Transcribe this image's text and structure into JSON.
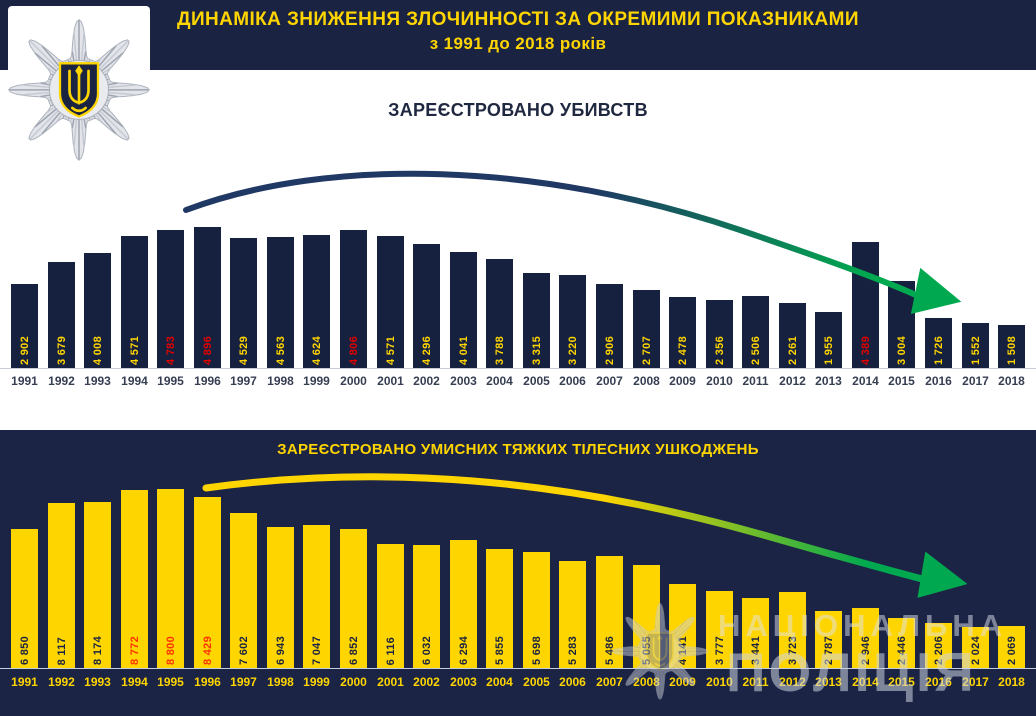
{
  "header": {
    "title_line1": "ДИНАМІКА ЗНИЖЕННЯ ЗЛОЧИННОСТІ ЗА ОКРЕМИМИ ПОКАЗНИКАМИ",
    "title_line2": "з 1991 до 2018 років"
  },
  "logo": {
    "icon": "national-police-star-badge"
  },
  "watermark": {
    "line1": "НАЦІОНАЛЬНА",
    "line2": "ПОЛІЦІЯ",
    "icon": "police-star-badge-faint"
  },
  "colors": {
    "navy_background": "#1B2444",
    "header_navy": "#1A2342",
    "bar_navy": "#16213F",
    "yellow": "#FFD500",
    "red_highlight_top": "#E00000",
    "red_highlight_bottom": "#FF3300",
    "arrow_green": "#00A94F",
    "arrow_navy": "#1F3864",
    "year_label_dark": "#363E52"
  },
  "chart_data": [
    {
      "type": "bar",
      "title": "ЗАРЕЄСТРОВАНО УБИВСТВ",
      "categories": [
        "1991",
        "1992",
        "1993",
        "1994",
        "1995",
        "1996",
        "1997",
        "1998",
        "1999",
        "2000",
        "2001",
        "2002",
        "2003",
        "2004",
        "2005",
        "2006",
        "2007",
        "2008",
        "2009",
        "2010",
        "2011",
        "2012",
        "2013",
        "2014",
        "2015",
        "2016",
        "2017",
        "2018"
      ],
      "values": [
        2902,
        3679,
        4008,
        4571,
        4783,
        4896,
        4529,
        4563,
        4624,
        4806,
        4571,
        4296,
        4041,
        3788,
        3315,
        3220,
        2906,
        2707,
        2478,
        2356,
        2506,
        2261,
        1955,
        4389,
        3004,
        1726,
        1552,
        1508
      ],
      "red_years": [
        "1995",
        "1996",
        "2000",
        "2014"
      ],
      "bar_color": "#16213F",
      "value_label_color": "#FFD500",
      "red_label_color": "#E00000",
      "year_label_color": "#363E52",
      "background": "#FFFFFF",
      "xlabel": "",
      "ylabel": "",
      "ylim": [
        0,
        5000
      ],
      "grid": false,
      "legend": "none",
      "annotation": "curved declining trend arrow, navy fading to green, tip pointing down-right"
    },
    {
      "type": "bar",
      "title": "ЗАРЕЄСТРОВАНО  УМИСНИХ ТЯЖКИХ ТІЛЕСНИХ УШКОДЖЕНЬ",
      "categories": [
        "1991",
        "1992",
        "1993",
        "1994",
        "1995",
        "1996",
        "1997",
        "1998",
        "1999",
        "2000",
        "2001",
        "2002",
        "2003",
        "2004",
        "2005",
        "2006",
        "2007",
        "2008",
        "2009",
        "2010",
        "2011",
        "2012",
        "2013",
        "2014",
        "2015",
        "2016",
        "2017",
        "2018"
      ],
      "values": [
        6850,
        8117,
        8174,
        8772,
        8800,
        8429,
        7602,
        6943,
        7047,
        6852,
        6116,
        6032,
        6294,
        5855,
        5698,
        5283,
        5486,
        5055,
        4141,
        3777,
        3441,
        3723,
        2787,
        2946,
        2446,
        2206,
        2024,
        2069
      ],
      "red_years": [
        "1994",
        "1995",
        "1996"
      ],
      "bar_color": "#FFD500",
      "value_label_color": "#1A2342",
      "red_label_color": "#FF3300",
      "year_label_color": "#FFD500",
      "background": "#1B2444",
      "xlabel": "",
      "ylabel": "",
      "ylim": [
        0,
        9000
      ],
      "grid": false,
      "legend": "none",
      "annotation": "curved declining trend arrow, yellow fading to green, tip pointing down-right"
    }
  ]
}
